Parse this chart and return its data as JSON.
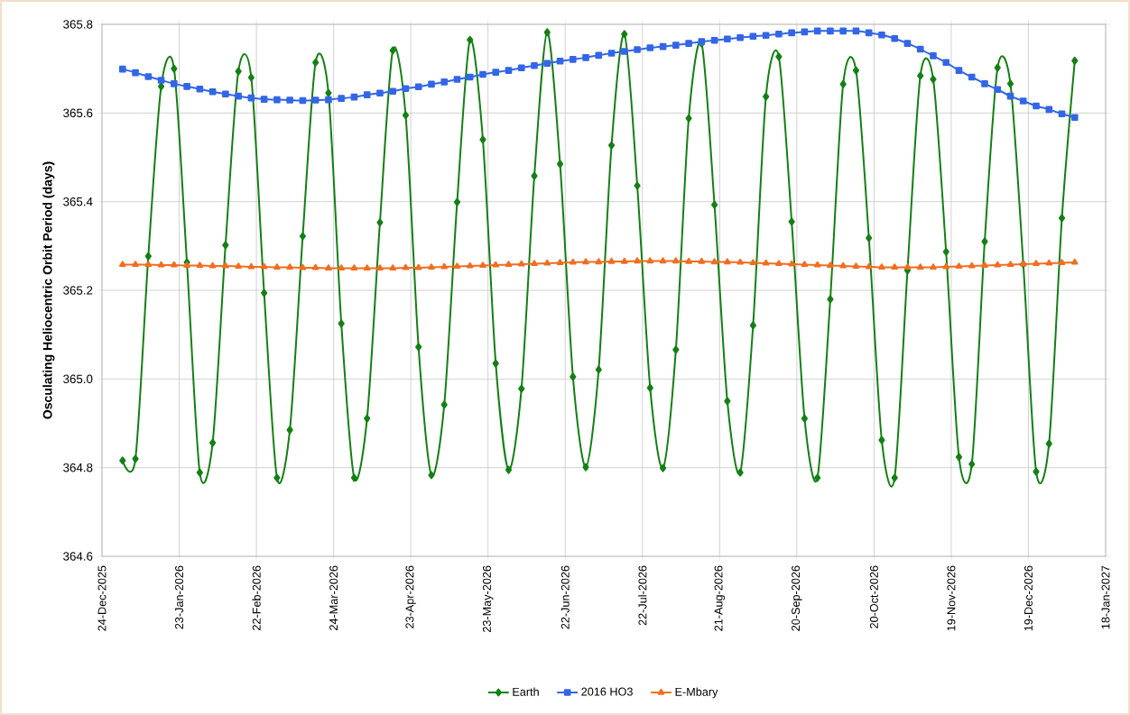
{
  "chart_data": {
    "type": "line",
    "ylabel": "Osculating Heliocentric Orbit Period (days)",
    "x": [
      "2026-01-01",
      "2026-01-06",
      "2026-01-11",
      "2026-01-16",
      "2026-01-21",
      "2026-01-26",
      "2026-01-31",
      "2026-02-05",
      "2026-02-10",
      "2026-02-15",
      "2026-02-20",
      "2026-02-25",
      "2026-03-02",
      "2026-03-07",
      "2026-03-12",
      "2026-03-17",
      "2026-03-22",
      "2026-03-27",
      "2026-04-01",
      "2026-04-06",
      "2026-04-11",
      "2026-04-16",
      "2026-04-21",
      "2026-04-26",
      "2026-05-01",
      "2026-05-06",
      "2026-05-11",
      "2026-05-16",
      "2026-05-21",
      "2026-05-26",
      "2026-05-31",
      "2026-06-05",
      "2026-06-10",
      "2026-06-15",
      "2026-06-20",
      "2026-06-25",
      "2026-06-30",
      "2026-07-05",
      "2026-07-10",
      "2026-07-15",
      "2026-07-20",
      "2026-07-25",
      "2026-07-30",
      "2026-08-04",
      "2026-08-09",
      "2026-08-14",
      "2026-08-19",
      "2026-08-24",
      "2026-08-29",
      "2026-09-03",
      "2026-09-08",
      "2026-09-13",
      "2026-09-18",
      "2026-09-23",
      "2026-09-28",
      "2026-10-03",
      "2026-10-08",
      "2026-10-13",
      "2026-10-18",
      "2026-10-23",
      "2026-10-28",
      "2026-11-02",
      "2026-11-07",
      "2026-11-12",
      "2026-11-17",
      "2026-11-22",
      "2026-11-27",
      "2026-12-02",
      "2026-12-07",
      "2026-12-12",
      "2026-12-17",
      "2026-12-22",
      "2026-12-27",
      "2027-01-01",
      "2027-01-06"
    ],
    "series": [
      {
        "name": "Earth",
        "color": "#138013",
        "marker": "diamond",
        "values": [
          364.816,
          364.82,
          365.277,
          365.66,
          365.7,
          365.263,
          364.789,
          364.856,
          365.302,
          365.694,
          365.68,
          365.194,
          364.777,
          364.885,
          365.322,
          365.714,
          365.645,
          365.125,
          364.777,
          364.911,
          365.353,
          365.741,
          365.595,
          365.072,
          364.783,
          364.942,
          365.399,
          365.765,
          365.54,
          365.035,
          364.795,
          364.978,
          365.458,
          365.782,
          365.485,
          365.005,
          364.801,
          365.021,
          365.527,
          365.778,
          365.436,
          364.98,
          364.799,
          365.066,
          365.588,
          365.757,
          365.393,
          364.95,
          364.789,
          365.121,
          365.637,
          365.727,
          365.355,
          364.911,
          364.777,
          365.18,
          365.665,
          365.696,
          365.318,
          364.862,
          364.777,
          365.245,
          365.684,
          365.676,
          365.287,
          364.824,
          364.808,
          365.31,
          365.702,
          365.666,
          365.259,
          364.791,
          364.854,
          365.363,
          365.718
        ]
      },
      {
        "name": "2016 HO3",
        "color": "#3366e6",
        "marker": "square",
        "values": [
          365.699,
          365.691,
          365.682,
          365.674,
          365.666,
          365.66,
          365.654,
          365.648,
          365.643,
          365.638,
          365.634,
          365.631,
          365.63,
          365.629,
          365.628,
          365.629,
          365.63,
          365.633,
          365.636,
          365.641,
          365.645,
          365.649,
          365.655,
          365.659,
          365.665,
          365.67,
          365.676,
          365.681,
          365.687,
          365.692,
          365.696,
          365.702,
          365.707,
          365.712,
          365.717,
          365.721,
          365.725,
          365.73,
          365.735,
          365.739,
          365.743,
          365.747,
          365.75,
          365.753,
          365.757,
          365.761,
          365.764,
          365.767,
          365.77,
          365.773,
          365.775,
          365.778,
          365.781,
          365.783,
          365.785,
          365.785,
          365.785,
          365.785,
          365.781,
          365.776,
          365.768,
          365.757,
          365.744,
          365.729,
          365.714,
          365.696,
          365.681,
          365.666,
          365.653,
          365.638,
          365.627,
          365.616,
          365.608,
          365.598,
          365.59
        ]
      },
      {
        "name": "E-Mbary",
        "color": "#f26d20",
        "marker": "triangle",
        "values": [
          365.258,
          365.258,
          365.258,
          365.257,
          365.257,
          365.256,
          365.256,
          365.255,
          365.255,
          365.254,
          365.253,
          365.253,
          365.252,
          365.252,
          365.251,
          365.251,
          365.25,
          365.25,
          365.25,
          365.25,
          365.25,
          365.25,
          365.251,
          365.251,
          365.252,
          365.253,
          365.254,
          365.255,
          365.256,
          365.257,
          365.258,
          365.259,
          365.26,
          365.261,
          365.262,
          365.263,
          365.264,
          365.264,
          365.265,
          365.265,
          365.266,
          365.266,
          365.266,
          365.266,
          365.265,
          365.265,
          365.264,
          365.264,
          365.263,
          365.262,
          365.261,
          365.26,
          365.259,
          365.258,
          365.257,
          365.256,
          365.255,
          365.254,
          365.253,
          365.252,
          365.252,
          365.252,
          365.252,
          365.252,
          365.253,
          365.254,
          365.255,
          365.256,
          365.257,
          365.258,
          365.259,
          365.26,
          365.261,
          365.262,
          365.263
        ]
      }
    ],
    "xlim": [
      "2025-12-24",
      "2027-01-18"
    ],
    "xticks": [
      {
        "value": "2025-12-24",
        "label": "24-Dec-2025"
      },
      {
        "value": "2026-01-23",
        "label": "23-Jan-2026"
      },
      {
        "value": "2026-02-22",
        "label": "22-Feb-2026"
      },
      {
        "value": "2026-03-24",
        "label": "24-Mar-2026"
      },
      {
        "value": "2026-04-23",
        "label": "23-Apr-2026"
      },
      {
        "value": "2026-05-23",
        "label": "23-May-2026"
      },
      {
        "value": "2026-06-22",
        "label": "22-Jun-2026"
      },
      {
        "value": "2026-07-22",
        "label": "22-Jul-2026"
      },
      {
        "value": "2026-08-21",
        "label": "21-Aug-2026"
      },
      {
        "value": "2026-09-20",
        "label": "20-Sep-2026"
      },
      {
        "value": "2026-10-20",
        "label": "20-Oct-2026"
      },
      {
        "value": "2026-11-19",
        "label": "19-Nov-2026"
      },
      {
        "value": "2026-12-19",
        "label": "19-Dec-2026"
      },
      {
        "value": "2027-01-18",
        "label": "18-Jan-2027"
      }
    ],
    "ylim": [
      364.6,
      365.8
    ],
    "yticks": [
      364.6,
      364.8,
      {
        "value": 365,
        "label": "365.0"
      },
      365.2,
      365.4,
      365.6,
      365.8
    ],
    "grid": true,
    "legend": "bottom",
    "line_style": "solid"
  }
}
